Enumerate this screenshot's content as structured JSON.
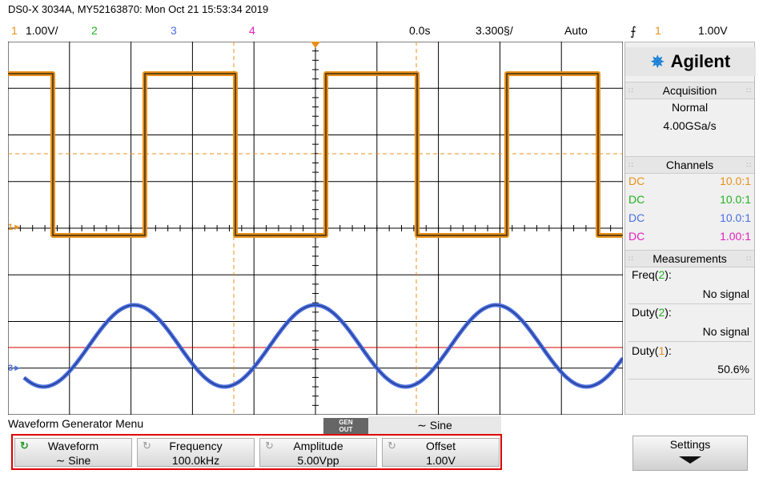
{
  "header": {
    "title": "DS0-X 3034A, MY52163870: Mon Oct 21 15:53:34 2019",
    "ch1_num": "1",
    "ch1_scale": "1.00V/",
    "ch2_num": "2",
    "ch3_num": "3",
    "ch4_num": "4",
    "time_delay": "0.0s",
    "time_scale": "3.300§/",
    "trigger_mode": "Auto",
    "trigger_edge_icon": "rising-edge-icon",
    "trigger_source": "1",
    "trigger_level": "1.00V"
  },
  "colors": {
    "ch1": "#e8901a",
    "ch2": "#22b022",
    "ch3": "#4a6fe0",
    "ch4": "#e020c0",
    "trigger_line": "#d00000",
    "highlight_box": "#dd0000"
  },
  "screen": {
    "ch1_marker": "1",
    "ch3_marker": "3"
  },
  "sidepanel": {
    "brand": "Agilent",
    "acquisition": {
      "heading": "Acquisition",
      "mode": "Normal",
      "rate": "4.00GSa/s"
    },
    "channels": {
      "heading": "Channels",
      "rows": [
        {
          "coupling": "DC",
          "probe": "10.0:1"
        },
        {
          "coupling": "DC",
          "probe": "10.0:1"
        },
        {
          "coupling": "DC",
          "probe": "10.0:1"
        },
        {
          "coupling": "DC",
          "probe": "1.00:1"
        }
      ]
    },
    "measurements": {
      "heading": "Measurements",
      "items": [
        {
          "name": "Freq(",
          "ch": "2",
          "close": "):",
          "value": "No signal"
        },
        {
          "name": "Duty(",
          "ch": "2",
          "close": "):",
          "value": "No signal"
        },
        {
          "name": "Duty(",
          "ch": "1",
          "close": "):",
          "value": "50.6%"
        }
      ]
    }
  },
  "menu": {
    "title": "Waveform Generator Menu",
    "gen_out_1": "GEN",
    "gen_out_2": "OUT",
    "current_wave": "∼ Sine",
    "softkeys": [
      {
        "label": "Waveform",
        "value": "∼ Sine"
      },
      {
        "label": "Frequency",
        "value": "100.0kHz"
      },
      {
        "label": "Amplitude",
        "value": "5.00Vpp"
      },
      {
        "label": "Offset",
        "value": "1.00V"
      }
    ],
    "settings_label": "Settings"
  }
}
